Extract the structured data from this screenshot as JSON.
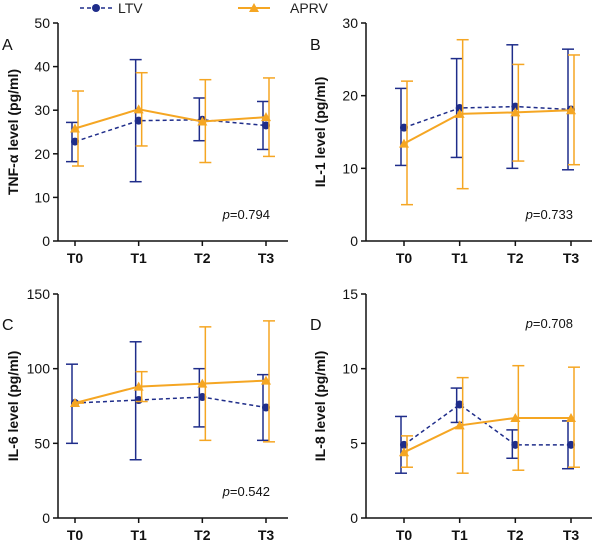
{
  "colors": {
    "ltv": "#1f2d8a",
    "aprv": "#f5a623",
    "axis": "#111111"
  },
  "legend": {
    "ltv": "LTV",
    "aprv": "APRV"
  },
  "chart_data": [
    {
      "type": "line",
      "panel": "A",
      "ylabel": "TNF-α level (pg/ml)",
      "categories": [
        "T0",
        "T1",
        "T2",
        "T3"
      ],
      "ylim": [
        0,
        50
      ],
      "yticks": [
        0,
        10,
        20,
        30,
        40,
        50
      ],
      "p_label": "p",
      "p_value": "=0.794",
      "p_pos": "bottom-right",
      "series": [
        {
          "name": "LTV",
          "values": [
            22.8,
            27.6,
            27.8,
            26.5
          ],
          "err_low": [
            18.2,
            13.6,
            23.0,
            21.0
          ],
          "err_high": [
            27.2,
            41.6,
            32.8,
            32.0
          ]
        },
        {
          "name": "APRV",
          "values": [
            25.8,
            30.2,
            27.4,
            28.4
          ],
          "err_low": [
            17.2,
            21.8,
            18.0,
            19.4
          ],
          "err_high": [
            34.4,
            38.6,
            37.0,
            37.4
          ]
        }
      ]
    },
    {
      "type": "line",
      "panel": "B",
      "ylabel": "IL-1 level (pg/ml)",
      "categories": [
        "T0",
        "T1",
        "T2",
        "T3"
      ],
      "ylim": [
        0,
        30
      ],
      "yticks": [
        0,
        10,
        20,
        30
      ],
      "p_label": "p",
      "p_value": "=0.733",
      "p_pos": "bottom-right",
      "series": [
        {
          "name": "LTV",
          "values": [
            15.6,
            18.3,
            18.5,
            18.1
          ],
          "err_low": [
            10.4,
            11.5,
            10.0,
            9.8
          ],
          "err_high": [
            21.0,
            25.1,
            27.0,
            26.4
          ]
        },
        {
          "name": "APRV",
          "values": [
            13.4,
            17.5,
            17.7,
            18.0
          ],
          "err_low": [
            5.0,
            7.2,
            11.0,
            10.5
          ],
          "err_high": [
            22.0,
            27.7,
            24.3,
            25.6
          ]
        }
      ]
    },
    {
      "type": "line",
      "panel": "C",
      "ylabel": "IL-6 level (pg/ml)",
      "categories": [
        "T0",
        "T1",
        "T2",
        "T3"
      ],
      "ylim": [
        0,
        150
      ],
      "yticks": [
        0,
        50,
        100,
        150
      ],
      "p_label": "p",
      "p_value": "=0.542",
      "p_pos": "bottom-right",
      "series": [
        {
          "name": "LTV",
          "values": [
            77,
            79,
            81,
            74
          ],
          "err_low": [
            50,
            39,
            61,
            52
          ],
          "err_high": [
            103,
            118,
            100,
            96
          ]
        },
        {
          "name": "APRV",
          "values": [
            77,
            88,
            90,
            92
          ],
          "err_low": [
            77,
            78,
            52,
            51
          ],
          "err_high": [
            77,
            98,
            128,
            132
          ]
        }
      ]
    },
    {
      "type": "line",
      "panel": "D",
      "ylabel": "IL-8 level (pg/ml)",
      "categories": [
        "T0",
        "T1",
        "T2",
        "T3"
      ],
      "ylim": [
        0,
        15
      ],
      "yticks": [
        0,
        5,
        10,
        15
      ],
      "p_label": "p",
      "p_value": "=0.708",
      "p_pos": "top-right",
      "series": [
        {
          "name": "LTV",
          "values": [
            4.9,
            7.6,
            4.9,
            4.9
          ],
          "err_low": [
            3.0,
            6.4,
            4.0,
            3.3
          ],
          "err_high": [
            6.8,
            8.7,
            5.9,
            6.5
          ]
        },
        {
          "name": "APRV",
          "values": [
            4.4,
            6.2,
            6.7,
            6.7
          ],
          "err_low": [
            3.4,
            3.0,
            3.2,
            3.4
          ],
          "err_high": [
            5.5,
            9.4,
            10.2,
            10.1
          ]
        }
      ]
    }
  ]
}
